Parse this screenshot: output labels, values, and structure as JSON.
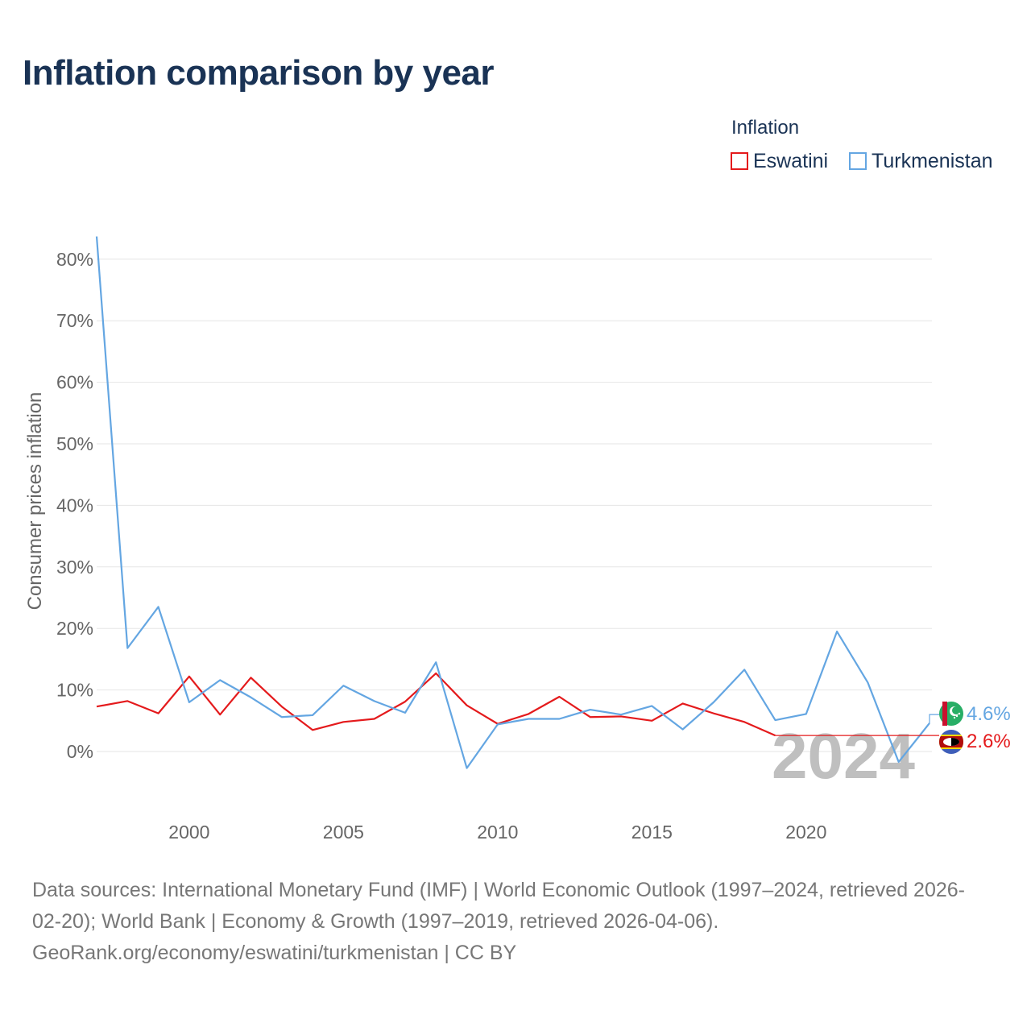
{
  "chart_data": {
    "type": "line",
    "title": "Inflation comparison by year",
    "xlabel": "",
    "ylabel": "Consumer prices inflation",
    "ylim": [
      -10,
      85
    ],
    "xlim": [
      1997,
      2024
    ],
    "yticks": [
      0,
      10,
      20,
      30,
      40,
      50,
      60,
      70,
      80
    ],
    "ytick_labels": [
      "0%",
      "10%",
      "20%",
      "30%",
      "40%",
      "50%",
      "60%",
      "70%",
      "80%"
    ],
    "xticks": [
      2000,
      2005,
      2010,
      2015,
      2020
    ],
    "xtick_labels": [
      "2000",
      "2005",
      "2010",
      "2015",
      "2020"
    ],
    "legend_title": "Inflation",
    "legend_position": "top-right",
    "current_year_label": "2024",
    "x": [
      1997,
      1998,
      1999,
      2000,
      2001,
      2002,
      2003,
      2004,
      2005,
      2006,
      2007,
      2008,
      2009,
      2010,
      2011,
      2012,
      2013,
      2014,
      2015,
      2016,
      2017,
      2018,
      2019,
      2020,
      2021,
      2022,
      2023,
      2024
    ],
    "series": [
      {
        "name": "Eswatini",
        "color": "#e41a1c",
        "values": [
          7.3,
          8.2,
          6.2,
          12.2,
          6.0,
          12.0,
          7.3,
          3.5,
          4.8,
          5.3,
          8.1,
          12.7,
          7.5,
          4.5,
          6.1,
          8.9,
          5.6,
          5.7,
          5.0,
          7.8,
          6.2,
          4.8,
          2.6,
          null,
          null,
          null,
          null,
          2.6
        ],
        "end_label": "2.6%"
      },
      {
        "name": "Turkmenistan",
        "color": "#64a6e2",
        "values": [
          83.7,
          16.8,
          23.5,
          8.0,
          11.6,
          8.8,
          5.6,
          5.9,
          10.7,
          8.2,
          6.3,
          14.5,
          -2.7,
          4.4,
          5.3,
          5.3,
          6.8,
          6.0,
          7.4,
          3.6,
          8.0,
          13.3,
          5.1,
          6.1,
          19.5,
          11.2,
          -1.7,
          4.6
        ],
        "end_label": "4.6%"
      }
    ]
  },
  "footer": {
    "line1": "Data sources: International Monetary Fund (IMF) | World Economic Outlook (1997–2024, retrieved 2026-",
    "line2": "02-20); World Bank | Economy & Growth (1997–2019, retrieved 2026-04-06).",
    "line3": "GeoRank.org/economy/eswatini/turkmenistan | CC BY"
  },
  "icons": {
    "turkmenistan": "turkmenistan-flag-icon",
    "eswatini": "eswatini-flag-icon"
  }
}
